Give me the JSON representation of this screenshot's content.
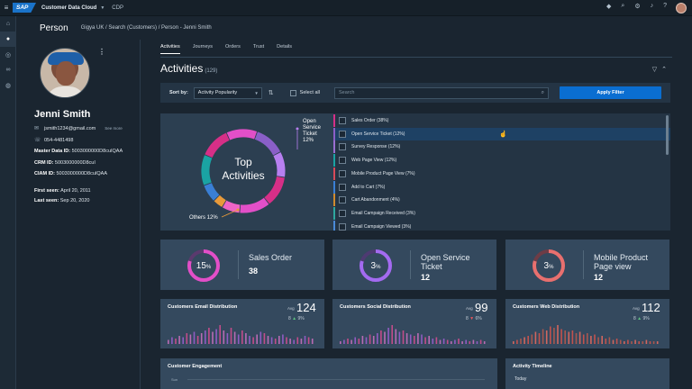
{
  "topbar": {
    "menu_icon": "hamburger-icon",
    "logo_text": "SAP",
    "app_name": "Customer Data Cloud",
    "section": "CDP",
    "icons": [
      "assistant-icon",
      "search-icon",
      "settings-icon",
      "bell-icon",
      "help-icon"
    ]
  },
  "header": {
    "title": "Person",
    "breadcrumb": "Gigya UK / Search (Customers) / Person - Jenni Smith"
  },
  "profile": {
    "name": "Jenni Smith",
    "email": "jsmith1234@gmail.com",
    "see_more": "See more",
    "phone": "054-4481498",
    "master_label": "Master Data ID:",
    "master_value": "5003000000D8cuIQAA",
    "crm_label": "CRM ID:",
    "crm_value": "5003000000D8cuI",
    "ciam_label": "CIAM ID:",
    "ciam_value": "5003000000D8cuIQAA",
    "first_label": "First seen:",
    "first_value": "April 20, 2011",
    "last_label": "Last seen:",
    "last_value": "Sep 20, 2020"
  },
  "tabs": [
    "Activities",
    "Journeys",
    "Orders",
    "Trust",
    "Details"
  ],
  "activities": {
    "title": "Activities",
    "count": "(129)",
    "sort_label": "Sort by:",
    "sort_value": "Activity Popularity",
    "select_all": "Select all",
    "search_placeholder": "Search",
    "apply_label": "Apply Filter"
  },
  "donut": {
    "center_line1": "Top",
    "center_line2": "Activities",
    "callout_top": [
      "Open",
      "Service",
      "Ticket",
      "12%"
    ],
    "callout_bottom": "Others 12%"
  },
  "activity_list": [
    {
      "label": "Sales Order (38%)",
      "color": "#d62f87",
      "highlight": false
    },
    {
      "label": "Open Service Ticket (12%)",
      "color": "#8a5fc8",
      "highlight": true
    },
    {
      "label": "Survey Response (12%)",
      "color": "#9a6fd0",
      "highlight": false
    },
    {
      "label": "Web Page View (12%)",
      "color": "#1aa3a3",
      "highlight": false
    },
    {
      "label": "Mobile Product Page View (7%)",
      "color": "#d84a5a",
      "highlight": false
    },
    {
      "label": "Add to Cart (7%)",
      "color": "#3a7fd5",
      "highlight": false
    },
    {
      "label": "Cart Abandonment (4%)",
      "color": "#d08a2e",
      "highlight": false
    },
    {
      "label": "Email Campaign Received (3%)",
      "color": "#2ea8a0",
      "highlight": false
    },
    {
      "label": "Email Campaign Viewed (3%)",
      "color": "#4a8ad8",
      "highlight": false
    }
  ],
  "kpis": [
    {
      "pct": "15",
      "unit": "%",
      "fraction": 0.15,
      "label1": "Sales Order",
      "label2": "",
      "number": "38",
      "color": "#e24fc8"
    },
    {
      "pct": "3",
      "unit": "%",
      "fraction": 0.03,
      "label1": "Open Service",
      "label2": "Ticket",
      "number": "12",
      "color": "#a36bf0"
    },
    {
      "pct": "3",
      "unit": "%",
      "fraction": 0.03,
      "label1": "Mobile Product",
      "label2": "Page view",
      "number": "12",
      "color": "#e8706f"
    }
  ],
  "distributions": [
    {
      "title": "Customers Email Distribution",
      "avg_label": "Avg",
      "avg": "124",
      "trend": "9%",
      "trend_dir": "up"
    },
    {
      "title": "Customers Social Distribution",
      "avg_label": "Avg",
      "avg": "99",
      "trend": "6%",
      "trend_dir": "down"
    },
    {
      "title": "Customers Web Distribution",
      "avg_label": "Avg",
      "avg": "112",
      "trend": "9%",
      "trend_dir": "up"
    }
  ],
  "engagement": {
    "title": "Customer Engagement",
    "axis_label": "Sun"
  },
  "timeline": {
    "title": "Activity Timeline",
    "first_item": "Today"
  }
}
